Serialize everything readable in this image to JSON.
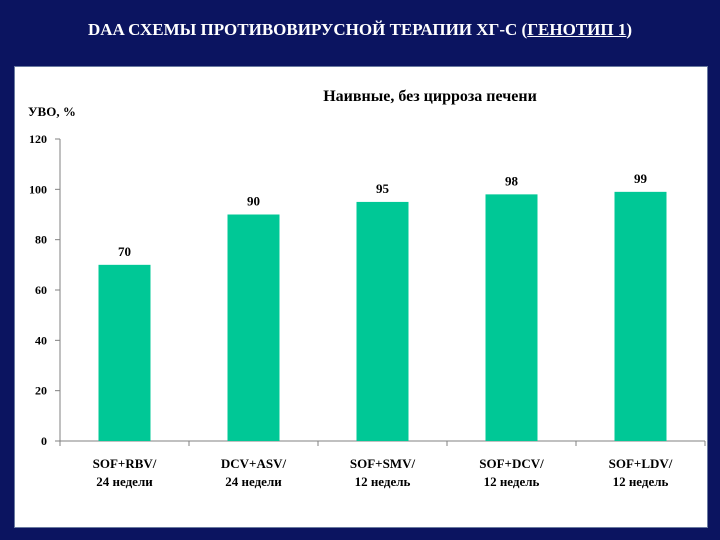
{
  "slide": {
    "title_main": "DAA СХЕМЫ ПРОТИВОВИРУСНОЙ ТЕРАПИИ ХГ-С (",
    "title_genotype": "ГЕНОТИП 1",
    "title_close": ")"
  },
  "colors": {
    "background": "#0b1460",
    "bar": "#00c896",
    "panel": "#ffffff"
  },
  "chart_data": {
    "type": "bar",
    "title": "Наивные,  без цирроза печени",
    "ylabel": "УВО, %",
    "xlabel": "",
    "ylim": [
      0,
      120
    ],
    "yticks": [
      0,
      20,
      40,
      60,
      80,
      100,
      120
    ],
    "grid": false,
    "categories": [
      [
        "SOF+RBV/",
        "24 недели"
      ],
      [
        "DCV+ASV/",
        "24 недели"
      ],
      [
        "SOF+SMV/",
        "12 недель"
      ],
      [
        "SOF+DCV/",
        "12 недель"
      ],
      [
        "SOF+LDV/",
        "12 недель"
      ]
    ],
    "values": [
      70,
      90,
      95,
      98,
      99
    ],
    "data_labels": [
      "70",
      "90",
      "95",
      "98",
      "99"
    ]
  }
}
